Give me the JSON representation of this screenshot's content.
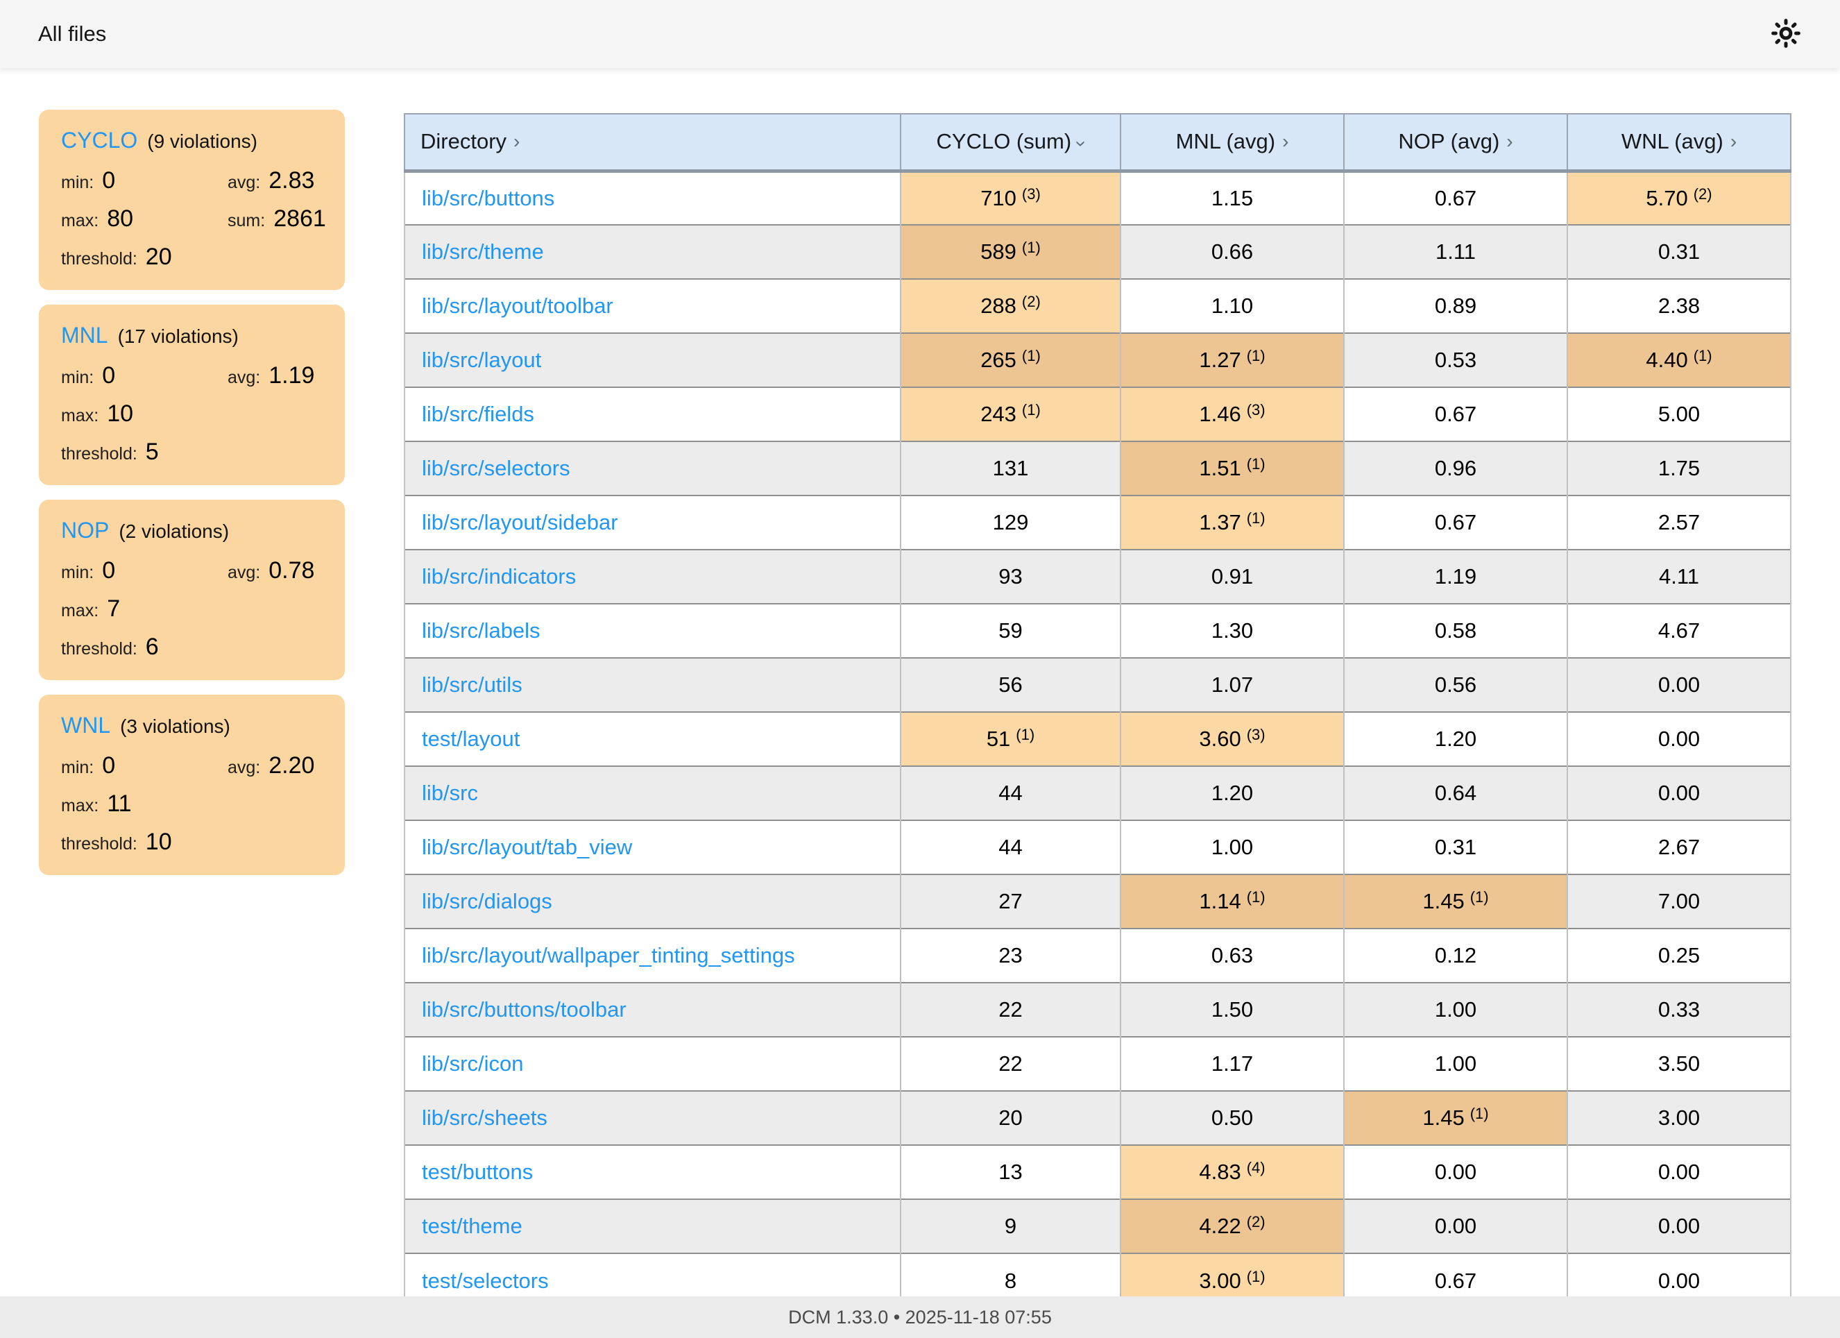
{
  "topbar": {
    "title": "All files"
  },
  "icons": {
    "sort_chevron": "›"
  },
  "sidebar": {
    "stat_labels": {
      "min": "min:",
      "avg": "avg:",
      "max": "max:",
      "sum": "sum:",
      "threshold": "threshold:"
    },
    "cards": [
      {
        "metric": "CYCLO",
        "violations": "(9 violations)",
        "stats": {
          "min": "0",
          "avg": "2.83",
          "max": "80",
          "sum": "2861",
          "threshold": "20"
        }
      },
      {
        "metric": "MNL",
        "violations": "(17 violations)",
        "stats": {
          "min": "0",
          "avg": "1.19",
          "max": "10",
          "threshold": "5"
        }
      },
      {
        "metric": "NOP",
        "violations": "(2 violations)",
        "stats": {
          "min": "0",
          "avg": "0.78",
          "max": "7",
          "threshold": "6"
        }
      },
      {
        "metric": "WNL",
        "violations": "(3 violations)",
        "stats": {
          "min": "0",
          "avg": "2.20",
          "max": "11",
          "threshold": "10"
        }
      }
    ]
  },
  "table": {
    "columns": [
      {
        "label": "Directory",
        "sort": "right"
      },
      {
        "label": "CYCLO (sum)",
        "sort": "down"
      },
      {
        "label": "MNL (avg)",
        "sort": "right"
      },
      {
        "label": "NOP (avg)",
        "sort": "right"
      },
      {
        "label": "WNL (avg)",
        "sort": "right"
      }
    ],
    "rows": [
      {
        "dir": "lib/src/buttons",
        "cells": [
          {
            "v": "710",
            "n": "(3)",
            "hl": true
          },
          {
            "v": "1.15"
          },
          {
            "v": "0.67"
          },
          {
            "v": "5.70",
            "n": "(2)",
            "hl": true
          }
        ]
      },
      {
        "dir": "lib/src/theme",
        "cells": [
          {
            "v": "589",
            "n": "(1)",
            "hl": true
          },
          {
            "v": "0.66"
          },
          {
            "v": "1.11"
          },
          {
            "v": "0.31"
          }
        ]
      },
      {
        "dir": "lib/src/layout/toolbar",
        "cells": [
          {
            "v": "288",
            "n": "(2)",
            "hl": true
          },
          {
            "v": "1.10"
          },
          {
            "v": "0.89"
          },
          {
            "v": "2.38"
          }
        ]
      },
      {
        "dir": "lib/src/layout",
        "cells": [
          {
            "v": "265",
            "n": "(1)",
            "hl": true
          },
          {
            "v": "1.27",
            "n": "(1)",
            "hl": true
          },
          {
            "v": "0.53"
          },
          {
            "v": "4.40",
            "n": "(1)",
            "hl": true
          }
        ]
      },
      {
        "dir": "lib/src/fields",
        "cells": [
          {
            "v": "243",
            "n": "(1)",
            "hl": true
          },
          {
            "v": "1.46",
            "n": "(3)",
            "hl": true
          },
          {
            "v": "0.67"
          },
          {
            "v": "5.00"
          }
        ]
      },
      {
        "dir": "lib/src/selectors",
        "cells": [
          {
            "v": "131"
          },
          {
            "v": "1.51",
            "n": "(1)",
            "hl": true
          },
          {
            "v": "0.96"
          },
          {
            "v": "1.75"
          }
        ]
      },
      {
        "dir": "lib/src/layout/sidebar",
        "cells": [
          {
            "v": "129"
          },
          {
            "v": "1.37",
            "n": "(1)",
            "hl": true
          },
          {
            "v": "0.67"
          },
          {
            "v": "2.57"
          }
        ]
      },
      {
        "dir": "lib/src/indicators",
        "cells": [
          {
            "v": "93"
          },
          {
            "v": "0.91"
          },
          {
            "v": "1.19"
          },
          {
            "v": "4.11"
          }
        ]
      },
      {
        "dir": "lib/src/labels",
        "cells": [
          {
            "v": "59"
          },
          {
            "v": "1.30"
          },
          {
            "v": "0.58"
          },
          {
            "v": "4.67"
          }
        ]
      },
      {
        "dir": "lib/src/utils",
        "cells": [
          {
            "v": "56"
          },
          {
            "v": "1.07"
          },
          {
            "v": "0.56"
          },
          {
            "v": "0.00"
          }
        ]
      },
      {
        "dir": "test/layout",
        "cells": [
          {
            "v": "51",
            "n": "(1)",
            "hl": true
          },
          {
            "v": "3.60",
            "n": "(3)",
            "hl": true
          },
          {
            "v": "1.20"
          },
          {
            "v": "0.00"
          }
        ]
      },
      {
        "dir": "lib/src",
        "cells": [
          {
            "v": "44"
          },
          {
            "v": "1.20"
          },
          {
            "v": "0.64"
          },
          {
            "v": "0.00"
          }
        ]
      },
      {
        "dir": "lib/src/layout/tab_view",
        "cells": [
          {
            "v": "44"
          },
          {
            "v": "1.00"
          },
          {
            "v": "0.31"
          },
          {
            "v": "2.67"
          }
        ]
      },
      {
        "dir": "lib/src/dialogs",
        "cells": [
          {
            "v": "27"
          },
          {
            "v": "1.14",
            "n": "(1)",
            "hl": true
          },
          {
            "v": "1.45",
            "n": "(1)",
            "hl": true
          },
          {
            "v": "7.00"
          }
        ]
      },
      {
        "dir": "lib/src/layout/wallpaper_tinting_settings",
        "cells": [
          {
            "v": "23"
          },
          {
            "v": "0.63"
          },
          {
            "v": "0.12"
          },
          {
            "v": "0.25"
          }
        ]
      },
      {
        "dir": "lib/src/buttons/toolbar",
        "cells": [
          {
            "v": "22"
          },
          {
            "v": "1.50"
          },
          {
            "v": "1.00"
          },
          {
            "v": "0.33"
          }
        ]
      },
      {
        "dir": "lib/src/icon",
        "cells": [
          {
            "v": "22"
          },
          {
            "v": "1.17"
          },
          {
            "v": "1.00"
          },
          {
            "v": "3.50"
          }
        ]
      },
      {
        "dir": "lib/src/sheets",
        "cells": [
          {
            "v": "20"
          },
          {
            "v": "0.50"
          },
          {
            "v": "1.45",
            "n": "(1)",
            "hl": true
          },
          {
            "v": "3.00"
          }
        ]
      },
      {
        "dir": "test/buttons",
        "cells": [
          {
            "v": "13"
          },
          {
            "v": "4.83",
            "n": "(4)",
            "hl": true
          },
          {
            "v": "0.00"
          },
          {
            "v": "0.00"
          }
        ]
      },
      {
        "dir": "test/theme",
        "cells": [
          {
            "v": "9"
          },
          {
            "v": "4.22",
            "n": "(2)",
            "hl": true
          },
          {
            "v": "0.00"
          },
          {
            "v": "0.00"
          }
        ]
      },
      {
        "dir": "test/selectors",
        "cells": [
          {
            "v": "8"
          },
          {
            "v": "3.00",
            "n": "(1)",
            "hl": true
          },
          {
            "v": "0.67"
          },
          {
            "v": "0.00"
          }
        ]
      }
    ]
  },
  "footer": {
    "status": "DCM 1.33.0 • 2025-11-18 07:55"
  },
  "colors": {
    "accent_blue": "#2196f3",
    "card_orange": "#fbd6a0",
    "highlight_orange": "#fcd8a4",
    "highlight_orange_dark": "#edc593",
    "header_blue": "#d7e7f7",
    "stripe_gray": "#ececec"
  }
}
